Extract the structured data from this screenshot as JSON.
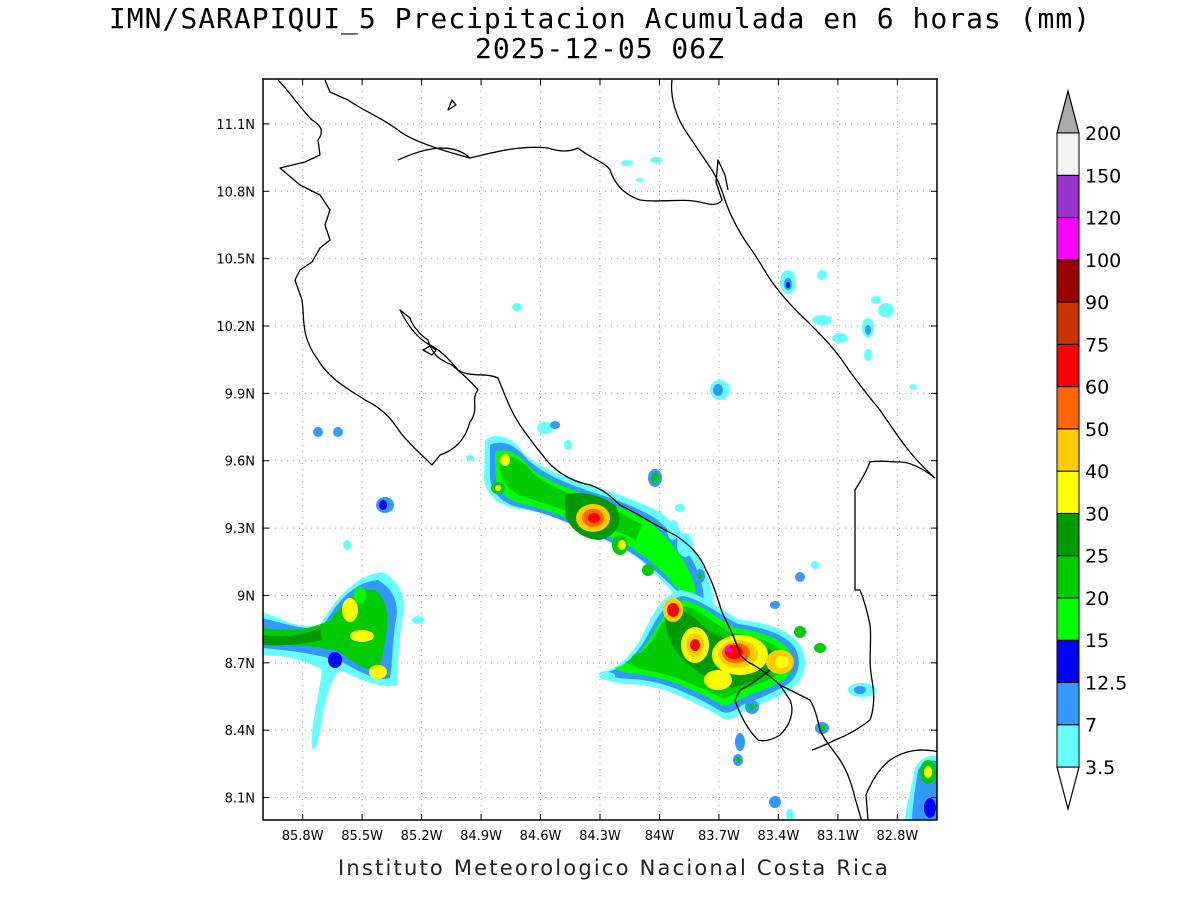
{
  "title": {
    "line1": "IMN/SARAPIQUI_5 Precipitacion Acumulada en 6 horas (mm)",
    "line2": "2025-12-05 06Z"
  },
  "footer": "Instituto Meteorologico Nacional Costa Rica",
  "map": {
    "lon_range": [
      -86.0,
      -82.6
    ],
    "lat_range": [
      8.0,
      11.3
    ],
    "lon_ticks": [
      "85.8W",
      "85.5W",
      "85.2W",
      "84.9W",
      "84.6W",
      "84.3W",
      "84W",
      "83.7W",
      "83.4W",
      "83.1W",
      "82.8W"
    ],
    "lon_values": [
      -85.8,
      -85.5,
      -85.2,
      -84.9,
      -84.6,
      -84.3,
      -84.0,
      -83.7,
      -83.4,
      -83.1,
      -82.8
    ],
    "lat_ticks": [
      "11.1N",
      "10.8N",
      "10.5N",
      "10.2N",
      "9.9N",
      "9.6N",
      "9.3N",
      "9N",
      "8.7N",
      "8.4N",
      "8.1N"
    ],
    "lat_values": [
      11.1,
      10.8,
      10.5,
      10.2,
      9.9,
      9.6,
      9.3,
      9.0,
      8.7,
      8.4,
      8.1
    ],
    "grid": true
  },
  "colorbar": {
    "labels": [
      "3.5",
      "7",
      "12.5",
      "15",
      "20",
      "25",
      "30",
      "40",
      "50",
      "60",
      "75",
      "90",
      "100",
      "120",
      "150",
      "200"
    ],
    "colors": [
      "#66ffff",
      "#3399ff",
      "#0000ff",
      "#00ff00",
      "#00cc00",
      "#009900",
      "#ffff00",
      "#ffcc00",
      "#ff6600",
      "#ff0000",
      "#cc3300",
      "#990000",
      "#ff00ff",
      "#9933cc",
      "#f2f2f2"
    ],
    "over_color": "#aaaaaa",
    "under_color": "#ffffff"
  }
}
